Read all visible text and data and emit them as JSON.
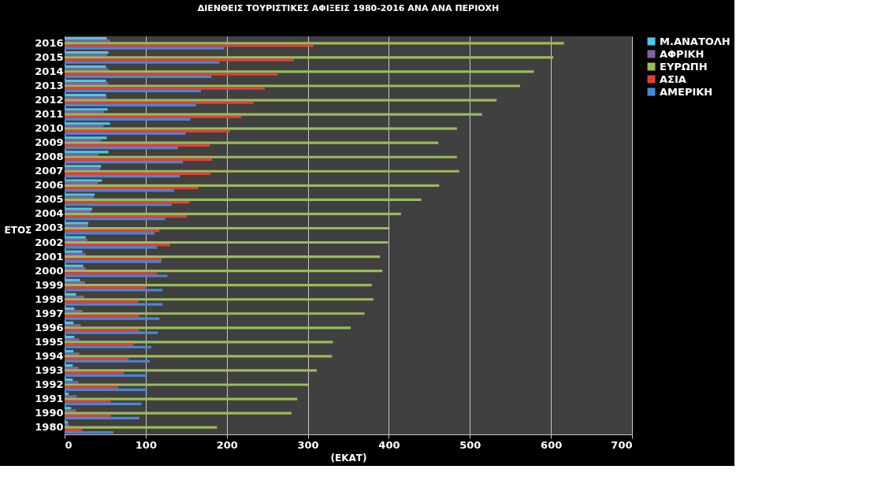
{
  "chart_data": {
    "type": "bar",
    "orientation": "horizontal",
    "title": "ΔΙΕΝΘΕΙΣ ΤΟΥΡΙΣΤΙΚΕΣ ΑΦΙΞΕΙΣ 1980-2016  ΑΝΑ  ΑΝΑ ΠΕΡΙΟΧΗ",
    "xlabel": "(ΕΚΑΤ)",
    "ylabel": "ΕΤΟΣ",
    "categories": [
      "2016",
      "2015",
      "2014",
      "2013",
      "2012",
      "2011",
      "2010",
      "2009",
      "2008",
      "2007",
      "2006",
      "2005",
      "2004",
      "2003",
      "2002",
      "2001",
      "2000",
      "1999",
      "1998",
      "1997",
      "1996",
      "1995",
      "1994",
      "1993",
      "1992",
      "1991",
      "1990",
      "1980"
    ],
    "series": [
      {
        "name": "Μ.ΑΝΑΤΟΛΗ",
        "color": "#4bc8e8",
        "values": [
          52,
          54,
          51,
          51,
          51,
          53,
          56,
          52,
          54,
          45,
          46,
          37,
          34,
          29,
          26,
          22,
          23,
          19,
          14,
          12,
          11,
          12,
          11,
          10,
          10,
          5,
          8,
          4
        ]
      },
      {
        "name": "ΑΦΡΙΚΗ",
        "color": "#8064a2",
        "values": [
          56,
          52,
          54,
          54,
          52,
          48,
          48,
          45,
          42,
          44,
          41,
          36,
          32,
          29,
          28,
          26,
          26,
          25,
          24,
          22,
          20,
          18,
          18,
          17,
          17,
          15,
          14,
          5
        ]
      },
      {
        "name": "ΕΥΡΩΠΗ",
        "color": "#9bbb59",
        "values": [
          616,
          603,
          579,
          562,
          533,
          515,
          484,
          461,
          484,
          487,
          462,
          440,
          415,
          401,
          399,
          389,
          392,
          379,
          381,
          370,
          353,
          331,
          330,
          311,
          301,
          287,
          280,
          188
        ]
      },
      {
        "name": "ΑΣΙΑ",
        "color": "#e0403a",
        "values": [
          307,
          283,
          263,
          247,
          233,
          218,
          204,
          179,
          182,
          180,
          165,
          154,
          151,
          117,
          130,
          120,
          114,
          101,
          91,
          92,
          92,
          85,
          79,
          73,
          66,
          57,
          57,
          22
        ]
      },
      {
        "name": "ΑΜΕΡΙΚΗ",
        "color": "#4a86d8",
        "values": [
          197,
          191,
          181,
          168,
          162,
          155,
          149,
          140,
          146,
          142,
          135,
          132,
          124,
          111,
          114,
          119,
          127,
          121,
          121,
          117,
          115,
          107,
          105,
          102,
          102,
          95,
          92,
          60
        ]
      }
    ],
    "xlim": [
      0,
      700
    ],
    "xticks": [
      0,
      100,
      200,
      300,
      400,
      500,
      600,
      700
    ],
    "grid": "x",
    "legend": "right"
  }
}
